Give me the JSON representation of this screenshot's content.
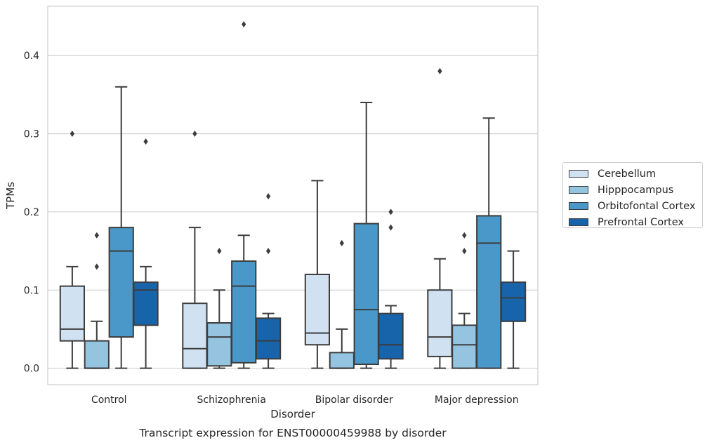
{
  "chart_data": {
    "type": "box",
    "title": "Transcript expression for ENST00000459988 by disorder",
    "xlabel": "Disorder",
    "ylabel": "TPMs",
    "ylim": [
      -0.021,
      0.463
    ],
    "yticks": [
      0.0,
      0.1,
      0.2,
      0.3,
      0.4
    ],
    "ytick_labels": [
      "0.0",
      "0.1",
      "0.2",
      "0.3",
      "0.4"
    ],
    "grid": "horizontal",
    "legend_position": "right",
    "categories": [
      "Control",
      "Schizophrenia",
      "Bipolar disorder",
      "Major depression"
    ],
    "series": [
      {
        "name": "Cerebellum",
        "color": "#d0e1f2",
        "boxes": [
          {
            "whisker_low": 0.0,
            "q1": 0.035,
            "median": 0.05,
            "q3": 0.105,
            "whisker_high": 0.13,
            "outliers": [
              0.3
            ]
          },
          {
            "whisker_low": 0.0,
            "q1": 0.0,
            "median": 0.025,
            "q3": 0.083,
            "whisker_high": 0.18,
            "outliers": [
              0.3
            ]
          },
          {
            "whisker_low": 0.0,
            "q1": 0.03,
            "median": 0.045,
            "q3": 0.12,
            "whisker_high": 0.24,
            "outliers": []
          },
          {
            "whisker_low": 0.0,
            "q1": 0.015,
            "median": 0.04,
            "q3": 0.1,
            "whisker_high": 0.14,
            "outliers": [
              0.38
            ]
          }
        ]
      },
      {
        "name": "Hipppocampus",
        "color": "#94c4df",
        "boxes": [
          {
            "whisker_low": 0.0,
            "q1": 0.0,
            "median": 0.0,
            "q3": 0.035,
            "whisker_high": 0.06,
            "outliers": [
              0.13,
              0.17
            ]
          },
          {
            "whisker_low": 0.0,
            "q1": 0.003,
            "median": 0.04,
            "q3": 0.058,
            "whisker_high": 0.1,
            "outliers": [
              0.15
            ]
          },
          {
            "whisker_low": 0.0,
            "q1": 0.0,
            "median": 0.0,
            "q3": 0.02,
            "whisker_high": 0.05,
            "outliers": [
              0.16
            ]
          },
          {
            "whisker_low": 0.0,
            "q1": 0.0,
            "median": 0.03,
            "q3": 0.055,
            "whisker_high": 0.07,
            "outliers": [
              0.15,
              0.17
            ]
          }
        ]
      },
      {
        "name": "Orbitofontal Cortex",
        "color": "#4a98c9",
        "boxes": [
          {
            "whisker_low": 0.0,
            "q1": 0.04,
            "median": 0.15,
            "q3": 0.18,
            "whisker_high": 0.36,
            "outliers": []
          },
          {
            "whisker_low": 0.0,
            "q1": 0.007,
            "median": 0.105,
            "q3": 0.137,
            "whisker_high": 0.17,
            "outliers": [
              0.44
            ]
          },
          {
            "whisker_low": 0.0,
            "q1": 0.005,
            "median": 0.075,
            "q3": 0.185,
            "whisker_high": 0.34,
            "outliers": []
          },
          {
            "whisker_low": 0.0,
            "q1": 0.0,
            "median": 0.16,
            "q3": 0.195,
            "whisker_high": 0.32,
            "outliers": []
          }
        ]
      },
      {
        "name": "Prefrontal Cortex",
        "color": "#1764ab",
        "boxes": [
          {
            "whisker_low": 0.0,
            "q1": 0.055,
            "median": 0.1,
            "q3": 0.11,
            "whisker_high": 0.13,
            "outliers": [
              0.29
            ]
          },
          {
            "whisker_low": 0.0,
            "q1": 0.012,
            "median": 0.035,
            "q3": 0.064,
            "whisker_high": 0.07,
            "outliers": [
              0.15,
              0.22
            ]
          },
          {
            "whisker_low": 0.0,
            "q1": 0.012,
            "median": 0.03,
            "q3": 0.07,
            "whisker_high": 0.08,
            "outliers": [
              0.18,
              0.2
            ]
          },
          {
            "whisker_low": 0.0,
            "q1": 0.06,
            "median": 0.09,
            "q3": 0.11,
            "whisker_high": 0.15,
            "outliers": []
          }
        ]
      }
    ]
  }
}
